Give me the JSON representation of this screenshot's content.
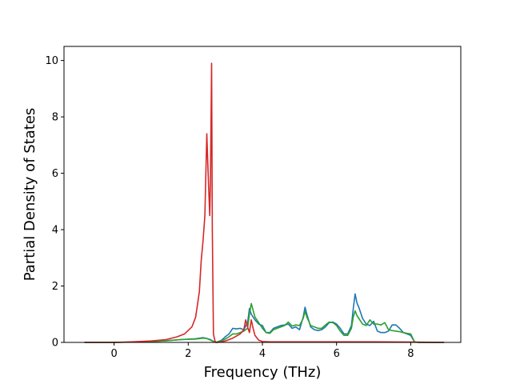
{
  "chart_data": {
    "type": "line",
    "title": "",
    "xlabel": "Frequency (THz)",
    "ylabel": "Partial Density of States",
    "xlim": [
      -1.35,
      9.35
    ],
    "ylim": [
      0,
      10.5
    ],
    "xticks": [
      0,
      2,
      4,
      6,
      8
    ],
    "yticks": [
      0,
      2,
      4,
      6,
      8,
      10
    ],
    "grid": false,
    "legend": "none",
    "series": [
      {
        "color": "#1f77b4",
        "x": [
          -0.8,
          0.0,
          0.8,
          1.4,
          1.8,
          2.2,
          2.4,
          2.5,
          2.6,
          2.7,
          2.75,
          2.9,
          3.0,
          3.1,
          3.2,
          3.3,
          3.4,
          3.5,
          3.6,
          3.65,
          3.7,
          3.8,
          3.9,
          4.0,
          4.1,
          4.2,
          4.3,
          4.4,
          4.5,
          4.6,
          4.7,
          4.8,
          4.9,
          5.0,
          5.1,
          5.15,
          5.2,
          5.3,
          5.4,
          5.5,
          5.6,
          5.7,
          5.8,
          5.9,
          6.0,
          6.1,
          6.2,
          6.3,
          6.4,
          6.45,
          6.5,
          6.55,
          6.6,
          6.7,
          6.8,
          6.9,
          7.0,
          7.1,
          7.2,
          7.3,
          7.4,
          7.5,
          7.6,
          7.7,
          7.8,
          7.9,
          8.0,
          8.1,
          8.2,
          8.9
        ],
        "y": [
          0,
          0,
          0.02,
          0.06,
          0.1,
          0.13,
          0.17,
          0.14,
          0.1,
          0.02,
          0.0,
          0.08,
          0.2,
          0.3,
          0.5,
          0.48,
          0.5,
          0.45,
          0.7,
          1.2,
          1.0,
          0.8,
          0.65,
          0.6,
          0.35,
          0.35,
          0.5,
          0.55,
          0.6,
          0.62,
          0.65,
          0.5,
          0.55,
          0.45,
          0.9,
          1.25,
          1.0,
          0.55,
          0.45,
          0.42,
          0.45,
          0.55,
          0.7,
          0.72,
          0.65,
          0.5,
          0.3,
          0.3,
          0.6,
          1.2,
          1.72,
          1.4,
          1.25,
          0.85,
          0.65,
          0.6,
          0.75,
          0.4,
          0.35,
          0.35,
          0.4,
          0.62,
          0.62,
          0.5,
          0.35,
          0.3,
          0.25,
          0.02,
          0.0,
          0
        ]
      },
      {
        "color": "#2ca02c",
        "x": [
          -0.8,
          0.0,
          0.8,
          1.4,
          1.8,
          2.2,
          2.4,
          2.5,
          2.6,
          2.7,
          2.75,
          2.9,
          3.0,
          3.1,
          3.2,
          3.3,
          3.4,
          3.5,
          3.6,
          3.65,
          3.7,
          3.8,
          3.9,
          4.0,
          4.1,
          4.2,
          4.3,
          4.4,
          4.5,
          4.6,
          4.7,
          4.8,
          4.9,
          5.0,
          5.1,
          5.15,
          5.2,
          5.3,
          5.4,
          5.5,
          5.6,
          5.7,
          5.8,
          5.9,
          6.0,
          6.1,
          6.2,
          6.3,
          6.4,
          6.45,
          6.5,
          6.55,
          6.6,
          6.7,
          6.8,
          6.9,
          7.0,
          7.1,
          7.2,
          7.3,
          7.4,
          7.5,
          7.6,
          7.7,
          7.8,
          7.9,
          8.0,
          8.1,
          8.2,
          8.9
        ],
        "y": [
          0,
          0,
          0.02,
          0.06,
          0.1,
          0.12,
          0.15,
          0.14,
          0.08,
          0.02,
          0.0,
          0.06,
          0.12,
          0.2,
          0.3,
          0.3,
          0.35,
          0.4,
          0.5,
          1.0,
          1.38,
          0.9,
          0.7,
          0.5,
          0.35,
          0.32,
          0.45,
          0.5,
          0.55,
          0.6,
          0.72,
          0.58,
          0.62,
          0.6,
          0.85,
          1.1,
          0.9,
          0.6,
          0.55,
          0.5,
          0.5,
          0.62,
          0.72,
          0.7,
          0.6,
          0.4,
          0.25,
          0.25,
          0.5,
          0.9,
          1.12,
          0.95,
          0.85,
          0.65,
          0.6,
          0.8,
          0.65,
          0.65,
          0.62,
          0.7,
          0.45,
          0.42,
          0.4,
          0.38,
          0.35,
          0.32,
          0.3,
          0.02,
          0.0,
          0
        ]
      },
      {
        "color": "#d62728",
        "x": [
          -0.8,
          0.0,
          0.5,
          1.0,
          1.4,
          1.7,
          1.9,
          2.1,
          2.2,
          2.3,
          2.35,
          2.4,
          2.45,
          2.5,
          2.55,
          2.58,
          2.6,
          2.63,
          2.65,
          2.68,
          2.72,
          2.75,
          2.8,
          3.0,
          3.2,
          3.4,
          3.5,
          3.55,
          3.6,
          3.65,
          3.7,
          3.75,
          3.8,
          3.9,
          4.0,
          4.2,
          5.0,
          6.0,
          7.0,
          8.0,
          8.9
        ],
        "y": [
          0,
          0,
          0.02,
          0.05,
          0.1,
          0.2,
          0.3,
          0.55,
          0.9,
          1.8,
          2.9,
          3.6,
          4.5,
          7.4,
          5.5,
          4.5,
          5.8,
          9.9,
          4.0,
          0.3,
          0.05,
          0.0,
          0.0,
          0.05,
          0.15,
          0.3,
          0.45,
          0.8,
          0.55,
          0.35,
          0.8,
          0.5,
          0.25,
          0.08,
          0.03,
          0.02,
          0.02,
          0.02,
          0.02,
          0.01,
          0
        ]
      }
    ]
  }
}
